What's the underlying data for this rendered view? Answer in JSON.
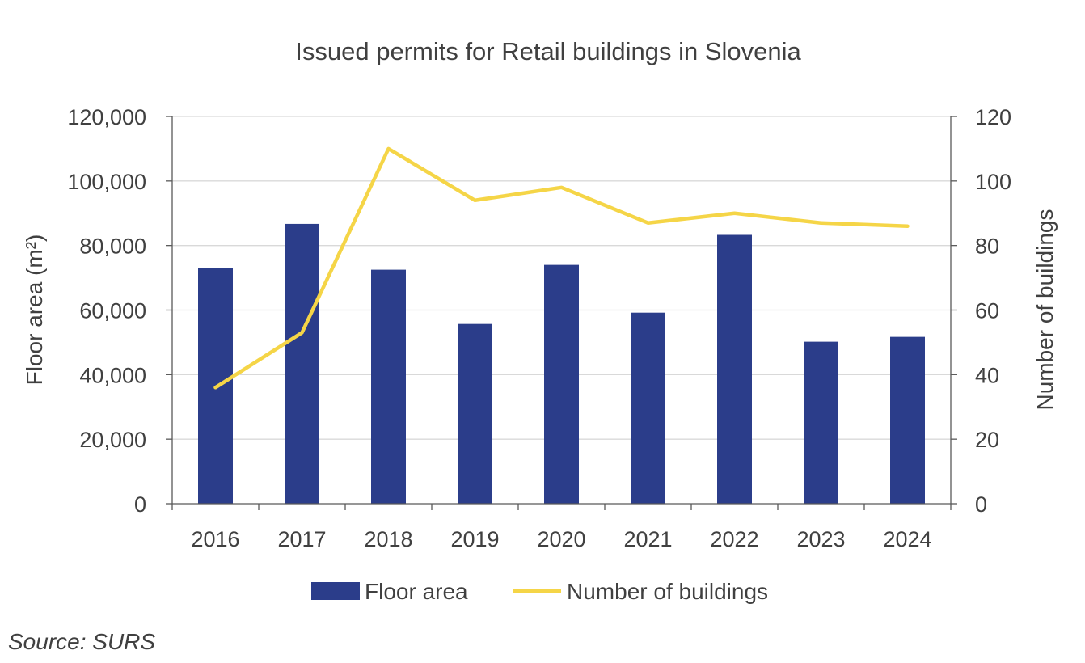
{
  "source": "Source: SURS",
  "chart_data": {
    "type": "bar+line",
    "title": "Issued permits for Retail buildings in Slovenia",
    "categories": [
      "2016",
      "2017",
      "2018",
      "2019",
      "2020",
      "2021",
      "2022",
      "2023",
      "2024"
    ],
    "series": [
      {
        "name": "Floor area",
        "type": "bar",
        "axis": "left",
        "color": "#2b3d8a",
        "values": [
          73000,
          86700,
          72500,
          55700,
          74000,
          59200,
          83300,
          50200,
          51700
        ]
      },
      {
        "name": "Number of buildings",
        "type": "line",
        "axis": "right",
        "color": "#f5d547",
        "values": [
          36,
          53,
          110,
          94,
          98,
          87,
          90,
          87,
          86
        ]
      }
    ],
    "ylabel": "Floor area (m²)",
    "y2label": "Number of buildings",
    "ylim": [
      0,
      120000
    ],
    "y2lim": [
      0,
      120
    ],
    "yticks": [
      "0",
      "20,000",
      "40,000",
      "60,000",
      "80,000",
      "100,000",
      "120,000"
    ],
    "y2ticks": [
      "0",
      "20",
      "40",
      "60",
      "80",
      "100",
      "120"
    ],
    "grid": true,
    "legend": "bottom"
  }
}
